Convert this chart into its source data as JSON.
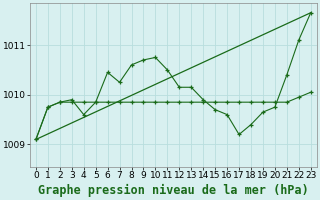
{
  "xlabel": "Graphe pression niveau de la mer (hPa)",
  "background_color": "#d8f0f0",
  "grid_color": "#b8dede",
  "line_color": "#1a6b1a",
  "xlim": [
    -0.5,
    23.5
  ],
  "ylim": [
    1008.55,
    1011.85
  ],
  "yticks": [
    1009,
    1010,
    1011
  ],
  "xticks": [
    0,
    1,
    2,
    3,
    4,
    5,
    6,
    7,
    8,
    9,
    10,
    11,
    12,
    13,
    14,
    15,
    16,
    17,
    18,
    19,
    20,
    21,
    22,
    23
  ],
  "line1_x": [
    0,
    1,
    2,
    3,
    4,
    5,
    6,
    7,
    8,
    9,
    10,
    11,
    12,
    13,
    14,
    15,
    16,
    17,
    18,
    19,
    20,
    21,
    22,
    23
  ],
  "line1_y": [
    1009.1,
    1009.75,
    1009.85,
    1009.85,
    1009.85,
    1009.85,
    1009.85,
    1009.85,
    1009.85,
    1009.85,
    1009.85,
    1009.85,
    1009.85,
    1009.85,
    1009.85,
    1009.85,
    1009.85,
    1009.85,
    1009.85,
    1009.85,
    1009.85,
    1009.85,
    1009.95,
    1010.05
  ],
  "line2_x": [
    0,
    1,
    2,
    3,
    4,
    5,
    6,
    7,
    8,
    9,
    10,
    11,
    12,
    13,
    14,
    15,
    16,
    17,
    18,
    19,
    20,
    21,
    22,
    23
  ],
  "line2_y": [
    1009.1,
    1009.75,
    1009.85,
    1009.9,
    1009.6,
    1009.85,
    1010.45,
    1010.25,
    1010.6,
    1010.7,
    1010.75,
    1010.5,
    1010.15,
    1010.15,
    1009.9,
    1009.7,
    1009.6,
    1009.2,
    1009.4,
    1009.65,
    1009.75,
    1010.4,
    1011.1,
    1011.65
  ],
  "line3_x": [
    0,
    23
  ],
  "line3_y": [
    1009.1,
    1011.65
  ],
  "tick_fontsize": 6.5,
  "xlabel_fontsize": 8.5
}
